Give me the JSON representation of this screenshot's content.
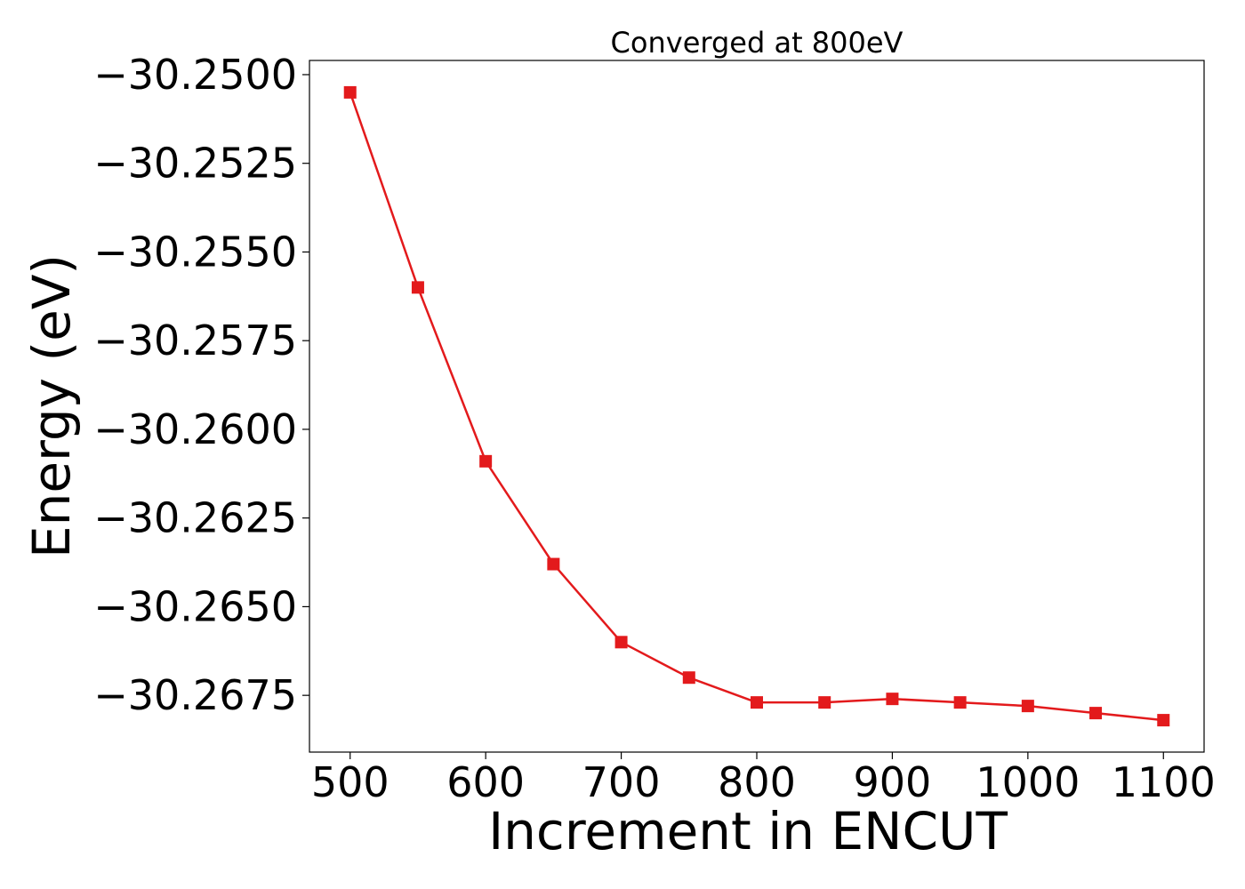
{
  "chart_data": {
    "type": "line",
    "title": "Converged at 800eV",
    "xlabel": "Increment in ENCUT",
    "ylabel": "Energy (eV)",
    "xlim": [
      470,
      1130
    ],
    "ylim": [
      -30.2691,
      -30.2496
    ],
    "x_ticks": [
      500,
      600,
      700,
      800,
      900,
      1000,
      1100
    ],
    "x_tick_labels": [
      "500",
      "600",
      "700",
      "800",
      "900",
      "1000",
      "1100"
    ],
    "y_ticks": [
      -30.25,
      -30.2525,
      -30.255,
      -30.2575,
      -30.26,
      -30.2625,
      -30.265,
      -30.2675
    ],
    "y_tick_labels": [
      "−30.2500",
      "−30.2525",
      "−30.2550",
      "−30.2575",
      "−30.2600",
      "−30.2625",
      "−30.2650",
      "−30.2675"
    ],
    "grid": false,
    "series": [
      {
        "color": "#e31a1c",
        "marker": "square",
        "x": [
          500,
          550,
          600,
          650,
          700,
          750,
          800,
          850,
          900,
          950,
          1000,
          1050,
          1100
        ],
        "y": [
          -30.2505,
          -30.256,
          -30.2609,
          -30.2638,
          -30.266,
          -30.267,
          -30.2677,
          -30.2677,
          -30.2676,
          -30.2677,
          -30.2678,
          -30.268,
          -30.2682
        ]
      }
    ]
  }
}
